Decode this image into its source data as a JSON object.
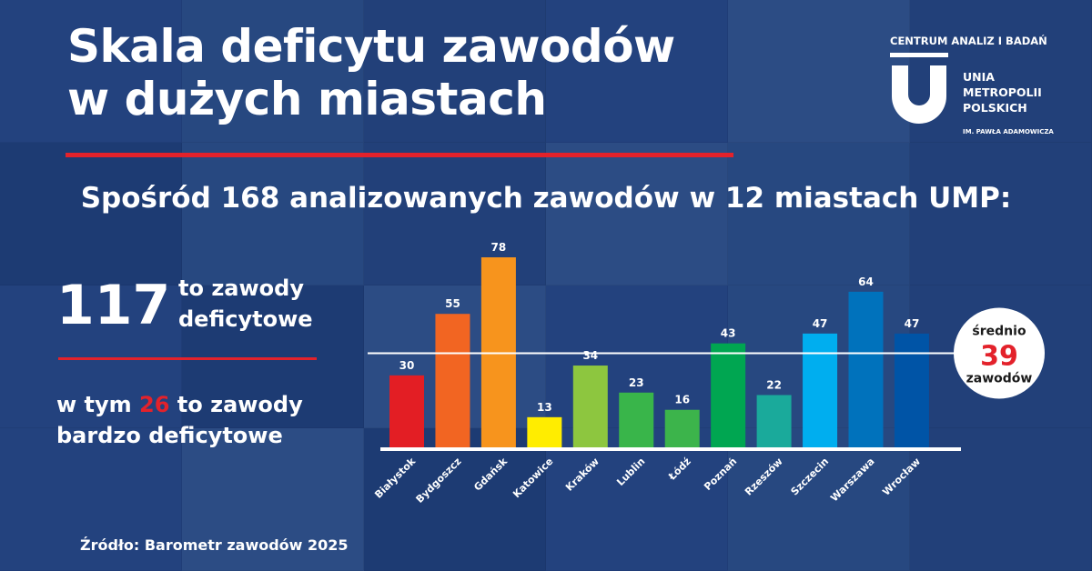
{
  "header": {
    "title_line1": "Skala deficytu zawodów",
    "title_line2": "w dużych miastach",
    "subtitle": "Spośród 168 analizowanych zawodów w 12 miastach UMP:"
  },
  "stats": {
    "shortage_count": "117",
    "shortage_label_line1": "to zawody",
    "shortage_label_line2": "deficytowe",
    "severe_prefix": "w tym",
    "severe_count": "26",
    "severe_suffix": "to zawody",
    "severe_line2": "bardzo deficytowe"
  },
  "logo": {
    "top_text": "CENTRUM ANALIZ I BADAŃ",
    "name_line1": "UNIA",
    "name_line2": "METROPOLII",
    "name_line3": "POLSKICH",
    "subtext": "IM. PAWŁA ADAMOWICZA"
  },
  "average": {
    "label_top": "średnio",
    "value": "39",
    "label_bottom": "zawodów",
    "numeric": 39
  },
  "source": "Źródło: Barometr zawodów 2025",
  "colors": {
    "accent_red": "#e3222b",
    "background_blue": "#274886"
  },
  "chart_data": {
    "type": "bar",
    "categories": [
      "Białystok",
      "Bydgoszcz",
      "Gdańsk",
      "Katowice",
      "Kraków",
      "Lublin",
      "Łódź",
      "Poznań",
      "Rzeszów",
      "Szczecin",
      "Warszawa",
      "Wrocław"
    ],
    "values": [
      30,
      55,
      78,
      13,
      34,
      23,
      16,
      43,
      22,
      47,
      64,
      47
    ],
    "bar_colors": [
      "#e31e24",
      "#f26522",
      "#f7941d",
      "#ffed00",
      "#8dc63f",
      "#39b54a",
      "#3cb44b",
      "#00a651",
      "#1aaa9b",
      "#00aeef",
      "#0072bc",
      "#0054a6"
    ],
    "reference_line": 39,
    "ylim": [
      0,
      78
    ],
    "grid": false,
    "title": "",
    "xlabel": "",
    "ylabel": ""
  }
}
